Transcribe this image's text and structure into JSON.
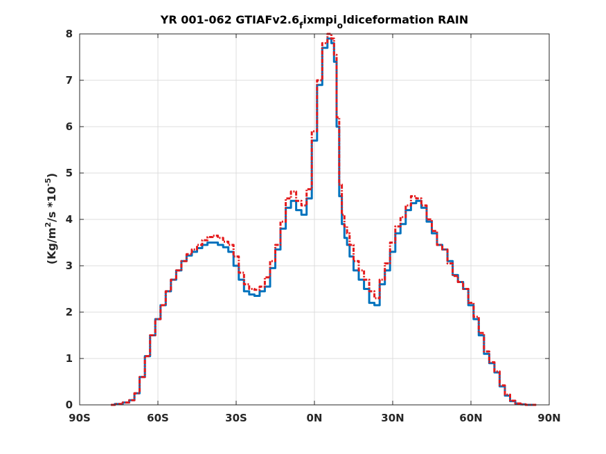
{
  "chart_data": {
    "type": "line",
    "title": {
      "main": "YR 001-062 GTIAFv2.6",
      "sub1": "f",
      "mid": "ixmpi",
      "sub2": "o",
      "tail": "ldiceformation RAIN"
    },
    "ylabel": {
      "part1": "(Kg/m",
      "sup1": "2",
      "part2": "/s  *10",
      "sup2": "-5",
      "part3": ")"
    },
    "xlim": [
      -90,
      90
    ],
    "ylim": [
      0,
      8
    ],
    "grid": true,
    "x_ticks": [
      -90,
      -60,
      -30,
      0,
      30,
      60,
      90
    ],
    "x_tick_labels": [
      "90S",
      "60S",
      "30S",
      "0N",
      "30N",
      "60N",
      "90N"
    ],
    "y_ticks": [
      0,
      1,
      2,
      3,
      4,
      5,
      6,
      7,
      8
    ],
    "y_tick_labels": [
      "0",
      "1",
      "2",
      "3",
      "4",
      "5",
      "6",
      "7",
      "8"
    ],
    "series": [
      {
        "color": "#0072bd",
        "style": "solid",
        "x": [
          -78,
          -75,
          -72,
          -70,
          -68,
          -66,
          -64,
          -62,
          -60,
          -58,
          -56,
          -54,
          -52,
          -50,
          -48,
          -46,
          -44,
          -42,
          -40,
          -38,
          -36,
          -34,
          -32,
          -30,
          -28,
          -26,
          -24,
          -22,
          -20,
          -18,
          -16,
          -14,
          -12,
          -10,
          -8,
          -6,
          -4,
          -2,
          0,
          2,
          4,
          6,
          7,
          8,
          9,
          10,
          11,
          12,
          13,
          14,
          16,
          18,
          20,
          22,
          24,
          26,
          28,
          30,
          32,
          34,
          36,
          38,
          40,
          42,
          44,
          46,
          48,
          50,
          52,
          54,
          56,
          58,
          60,
          62,
          64,
          66,
          68,
          70,
          72,
          74,
          76,
          78,
          80,
          82,
          85
        ],
        "y": [
          0.0,
          0.02,
          0.05,
          0.1,
          0.25,
          0.6,
          1.05,
          1.5,
          1.85,
          2.15,
          2.45,
          2.7,
          2.9,
          3.1,
          3.22,
          3.3,
          3.38,
          3.45,
          3.5,
          3.5,
          3.45,
          3.4,
          3.3,
          3.0,
          2.7,
          2.45,
          2.38,
          2.35,
          2.45,
          2.55,
          2.95,
          3.35,
          3.8,
          4.25,
          4.4,
          4.2,
          4.1,
          4.45,
          5.7,
          6.9,
          7.7,
          7.9,
          7.8,
          7.4,
          6.0,
          4.5,
          3.9,
          3.6,
          3.45,
          3.2,
          2.9,
          2.7,
          2.5,
          2.2,
          2.15,
          2.6,
          2.9,
          3.3,
          3.7,
          3.9,
          4.2,
          4.35,
          4.4,
          4.25,
          3.95,
          3.7,
          3.45,
          3.35,
          3.1,
          2.8,
          2.65,
          2.5,
          2.15,
          1.85,
          1.5,
          1.1,
          0.9,
          0.7,
          0.4,
          0.2,
          0.08,
          0.03,
          0.01,
          0.0,
          0.0
        ]
      },
      {
        "color": "#e41a1c",
        "style": "dashed",
        "x": [
          -78,
          -75,
          -72,
          -70,
          -68,
          -66,
          -64,
          -62,
          -60,
          -58,
          -56,
          -54,
          -52,
          -50,
          -48,
          -46,
          -44,
          -42,
          -40,
          -38,
          -36,
          -34,
          -32,
          -30,
          -28,
          -26,
          -24,
          -22,
          -20,
          -18,
          -16,
          -14,
          -12,
          -10,
          -8,
          -6,
          -4,
          -2,
          0,
          2,
          4,
          6,
          7,
          8,
          9,
          10,
          11,
          12,
          13,
          14,
          16,
          18,
          20,
          22,
          24,
          26,
          28,
          30,
          32,
          34,
          36,
          38,
          40,
          42,
          44,
          46,
          48,
          50,
          52,
          54,
          56,
          58,
          60,
          62,
          64,
          66,
          68,
          70,
          72,
          74,
          76,
          78,
          80,
          82,
          85
        ],
        "y": [
          0.0,
          0.02,
          0.05,
          0.1,
          0.25,
          0.6,
          1.05,
          1.5,
          1.85,
          2.15,
          2.45,
          2.7,
          2.9,
          3.1,
          3.25,
          3.35,
          3.45,
          3.55,
          3.62,
          3.65,
          3.6,
          3.52,
          3.45,
          3.2,
          2.85,
          2.6,
          2.5,
          2.48,
          2.55,
          2.75,
          3.1,
          3.45,
          3.95,
          4.45,
          4.6,
          4.4,
          4.3,
          4.65,
          5.9,
          7.0,
          7.8,
          8.0,
          7.9,
          7.55,
          6.2,
          4.75,
          4.1,
          3.85,
          3.7,
          3.45,
          3.1,
          2.9,
          2.7,
          2.45,
          2.3,
          2.7,
          3.05,
          3.5,
          3.85,
          4.05,
          4.3,
          4.5,
          4.45,
          4.3,
          4.0,
          3.75,
          3.45,
          3.35,
          3.05,
          2.78,
          2.65,
          2.5,
          2.2,
          1.9,
          1.55,
          1.15,
          0.92,
          0.72,
          0.42,
          0.22,
          0.09,
          0.03,
          0.01,
          0.0,
          0.0
        ]
      }
    ]
  }
}
